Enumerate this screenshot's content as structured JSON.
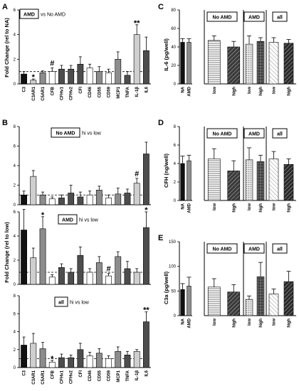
{
  "figure": {
    "panels": [
      {
        "id": "A",
        "letter": "A",
        "ylabel": "Fold Change (rel to NA)",
        "heading_boxed": "AMD",
        "heading_plain": "vs No AMD",
        "ylim": [
          0,
          6
        ],
        "yticks": [
          0,
          2,
          4,
          6
        ],
        "categories": [
          "C3",
          "C3AR1",
          "C5AR1",
          "CFB",
          "CFHv1",
          "CFHv2",
          "CFI",
          "CD46",
          "CD55",
          "CD59",
          "MCP1",
          "TNFA",
          "IL-1β",
          "IL6"
        ],
        "values": [
          0.8,
          0.3,
          0.9,
          1.0,
          1.2,
          1.2,
          1.6,
          1.3,
          1.0,
          0.9,
          2.0,
          0.7,
          4.0,
          2.7
        ],
        "errors": [
          0.2,
          0.1,
          0.15,
          0.3,
          0.3,
          0.3,
          0.6,
          0.3,
          0.4,
          0.3,
          0.6,
          0.3,
          0.8,
          1.1
        ],
        "sig_labels": [
          {
            "index": 1,
            "text": "*"
          },
          {
            "index": 3,
            "text": "#"
          },
          {
            "index": 12,
            "text": "**"
          }
        ],
        "show_xlabels": true
      },
      {
        "id": "B1",
        "letter": "B",
        "ylabel": "",
        "heading_boxed": "No AMD",
        "heading_plain": "hi vs low",
        "ylim": [
          0,
          8
        ],
        "yticks": [
          0,
          2,
          4,
          6,
          8
        ],
        "categories": [
          "C3",
          "C3AR1",
          "C5AR1",
          "CFB",
          "CFHv1",
          "CFHv2",
          "CFI",
          "CD46",
          "CD55",
          "CD59",
          "MCP1",
          "TNFA",
          "IL-1β",
          "IL6"
        ],
        "values": [
          1.0,
          2.9,
          1.0,
          0.6,
          0.7,
          1.2,
          0.8,
          1.0,
          1.5,
          0.7,
          1.1,
          1.2,
          2.2,
          5.2
        ],
        "errors": [
          0.4,
          0.6,
          0.3,
          0.2,
          0.3,
          0.8,
          0.5,
          0.4,
          0.4,
          0.3,
          0.6,
          0.4,
          0.5,
          1.2
        ],
        "sig_labels": [
          {
            "index": 12,
            "text": "#"
          }
        ],
        "show_xlabels": false
      },
      {
        "id": "B2",
        "letter": "",
        "ylabel": "Fold Change (rel to low)",
        "heading_boxed": "AMD",
        "heading_plain": "hi vs low",
        "ylim": [
          0,
          6
        ],
        "yticks": [
          0,
          2,
          4,
          6
        ],
        "categories": [
          "C3",
          "C3AR1",
          "C5AR1",
          "CFB",
          "CFHv1",
          "CFHv2",
          "CFI",
          "CD46",
          "CD55",
          "CD59",
          "MCP1",
          "TNFA",
          "IL-1β",
          "IL6"
        ],
        "values": [
          4.5,
          2.2,
          4.6,
          0.6,
          1.4,
          1.0,
          2.4,
          1.0,
          1.8,
          0.7,
          2.3,
          1.3,
          1.0,
          4.7
        ],
        "errors": [
          1.7,
          0.8,
          1.0,
          0.2,
          0.3,
          0.3,
          0.7,
          0.3,
          0.5,
          0.2,
          0.4,
          0.6,
          0.3,
          1.3
        ],
        "sig_labels": [
          {
            "index": 2,
            "text": "*"
          },
          {
            "index": 9,
            "text": "#"
          },
          {
            "index": 13,
            "text": "*"
          }
        ],
        "show_xlabels": false
      },
      {
        "id": "B3",
        "letter": "",
        "ylabel": "",
        "heading_boxed": "all",
        "heading_plain": "hi vs low",
        "ylim": [
          0,
          8
        ],
        "yticks": [
          0,
          2,
          4,
          6,
          8
        ],
        "categories": [
          "C3",
          "C3AR1",
          "C5AR1",
          "CFB",
          "CFHv1",
          "CFHv2",
          "CFI",
          "CD46",
          "CD55",
          "CD59",
          "MCP1",
          "TNFA",
          "IL-1β",
          "IL6"
        ],
        "values": [
          2.5,
          2.7,
          2.1,
          0.6,
          1.1,
          1.1,
          2.0,
          1.3,
          1.6,
          1.0,
          1.8,
          1.4,
          1.8,
          5.1
        ],
        "errors": [
          0.9,
          1.1,
          0.7,
          0.2,
          0.4,
          0.3,
          0.7,
          0.4,
          0.5,
          0.3,
          0.5,
          0.4,
          0.2,
          1.1
        ],
        "sig_labels": [
          {
            "index": 3,
            "text": "*"
          },
          {
            "index": 13,
            "text": "**"
          }
        ],
        "show_xlabels": true
      },
      {
        "id": "C",
        "letter": "C",
        "ylabel": "IL-6 (pg/well)",
        "ylim": [
          0,
          80
        ],
        "yticks": [
          0,
          20,
          40,
          60,
          80
        ],
        "left_categories": [
          "NA",
          "AMD"
        ],
        "left_values": [
          45,
          45
        ],
        "left_errors": [
          4,
          4
        ],
        "groups": [
          {
            "label": "No AMD",
            "bar_labels": [
              "low",
              "high"
            ],
            "values": [
              47,
              40
            ],
            "errors": [
              5,
              6
            ]
          },
          {
            "label": "AMD",
            "bar_labels": [
              "low",
              "high"
            ],
            "values": [
              43,
              46
            ],
            "errors": [
              9,
              4
            ]
          },
          {
            "label": "all",
            "bar_labels": [
              "low",
              "high"
            ],
            "values": [
              45,
              44
            ],
            "errors": [
              5,
              4
            ]
          }
        ]
      },
      {
        "id": "D",
        "letter": "D",
        "ylabel": "CFH (ng/well)",
        "ylim": [
          0,
          8
        ],
        "yticks": [
          0,
          2,
          4,
          6,
          8
        ],
        "left_categories": [
          "NA",
          "AMD"
        ],
        "left_values": [
          4.0,
          4.3
        ],
        "left_errors": [
          0.8,
          0.6
        ],
        "groups": [
          {
            "label": "No AMD",
            "bar_labels": [
              "low",
              "high"
            ],
            "values": [
              4.5,
              3.2
            ],
            "errors": [
              1.1,
              1.1
            ]
          },
          {
            "label": "AMD",
            "bar_labels": [
              "low",
              "high"
            ],
            "values": [
              4.4,
              4.2
            ],
            "errors": [
              1.3,
              0.7
            ]
          },
          {
            "label": "all",
            "bar_labels": [
              "low",
              "high"
            ],
            "values": [
              4.5,
              3.9
            ],
            "errors": [
              0.8,
              0.6
            ]
          }
        ]
      },
      {
        "id": "E",
        "letter": "E",
        "ylabel": "C3a (pg/well)",
        "ylim": [
          0,
          150
        ],
        "yticks": [
          0,
          50,
          100,
          150
        ],
        "left_categories": [
          "NA",
          "AMD"
        ],
        "left_values": [
          53,
          60
        ],
        "left_errors": [
          12,
          18
        ],
        "groups": [
          {
            "label": "No AMD",
            "bar_labels": [
              "low",
              "high"
            ],
            "values": [
              58,
              48
            ],
            "errors": [
              17,
              15
            ]
          },
          {
            "label": "AMD",
            "bar_labels": [
              "low",
              "high"
            ],
            "values": [
              33,
              79
            ],
            "errors": [
              7,
              29
            ]
          },
          {
            "label": "all",
            "bar_labels": [
              "low",
              "high"
            ],
            "values": [
              44,
              69
            ],
            "errors": [
              10,
              21
            ]
          }
        ]
      }
    ],
    "colors": {
      "black": "#111111",
      "dark": "#4d4d4d",
      "mid": "#8c8c8c",
      "light": "#cfcfcf",
      "white": "#ffffff"
    }
  }
}
